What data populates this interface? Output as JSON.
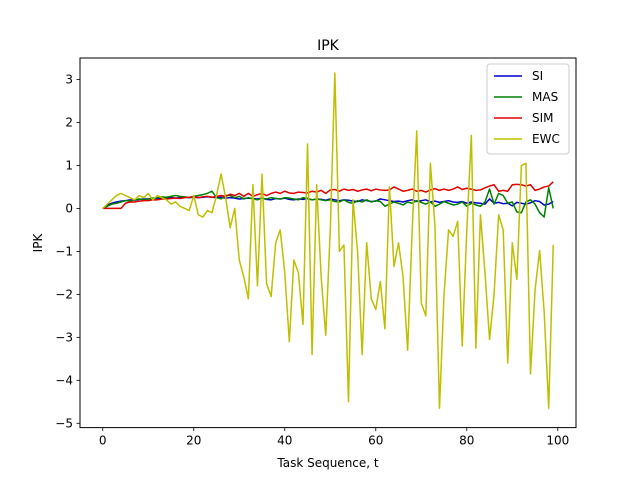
{
  "chart_data": {
    "type": "line",
    "title": "IPK",
    "xlabel": "Task Sequence, t",
    "ylabel": "IPK",
    "xlim": [
      -5,
      104
    ],
    "ylim": [
      -5.1,
      3.5
    ],
    "xticks": [
      0,
      20,
      40,
      60,
      80,
      100
    ],
    "yticks": [
      3,
      2,
      1,
      0,
      -1,
      -2,
      -3,
      -4,
      -5
    ],
    "ytick_labels": [
      "3",
      "2",
      "1",
      "0",
      "−1",
      "−2",
      "−3",
      "−4",
      "−5"
    ],
    "grid": false,
    "legend_position": "top-right",
    "x": [
      0,
      1,
      2,
      3,
      4,
      5,
      6,
      7,
      8,
      9,
      10,
      11,
      12,
      13,
      14,
      15,
      16,
      17,
      18,
      19,
      20,
      21,
      22,
      23,
      24,
      25,
      26,
      27,
      28,
      29,
      30,
      31,
      32,
      33,
      34,
      35,
      36,
      37,
      38,
      39,
      40,
      41,
      42,
      43,
      44,
      45,
      46,
      47,
      48,
      49,
      50,
      51,
      52,
      53,
      54,
      55,
      56,
      57,
      58,
      59,
      60,
      61,
      62,
      63,
      64,
      65,
      66,
      67,
      68,
      69,
      70,
      71,
      72,
      73,
      74,
      75,
      76,
      77,
      78,
      79,
      80,
      81,
      82,
      83,
      84,
      85,
      86,
      87,
      88,
      89,
      90,
      91,
      92,
      93,
      94,
      95,
      96,
      97,
      98,
      99
    ],
    "series": [
      {
        "name": "SI",
        "color": "#0000cc",
        "values": [
          0.0,
          0.08,
          0.12,
          0.15,
          0.17,
          0.18,
          0.2,
          0.19,
          0.21,
          0.22,
          0.22,
          0.23,
          0.23,
          0.24,
          0.24,
          0.25,
          0.24,
          0.25,
          0.26,
          0.25,
          0.26,
          0.25,
          0.26,
          0.27,
          0.26,
          0.25,
          0.26,
          0.24,
          0.25,
          0.24,
          0.22,
          0.23,
          0.24,
          0.23,
          0.22,
          0.24,
          0.21,
          0.2,
          0.23,
          0.22,
          0.24,
          0.21,
          0.2,
          0.22,
          0.21,
          0.23,
          0.2,
          0.22,
          0.21,
          0.19,
          0.22,
          0.2,
          0.18,
          0.2,
          0.19,
          0.17,
          0.16,
          0.2,
          0.18,
          0.16,
          0.17,
          0.22,
          0.2,
          0.18,
          0.16,
          0.17,
          0.15,
          0.18,
          0.2,
          0.16,
          0.18,
          0.2,
          0.15,
          0.17,
          0.14,
          0.16,
          0.18,
          0.15,
          0.14,
          0.16,
          0.12,
          0.15,
          0.13,
          0.12,
          0.1,
          0.22,
          0.12,
          0.14,
          0.11,
          0.12,
          0.06,
          0.14,
          0.12,
          0.1,
          0.13,
          0.18,
          0.16,
          0.08,
          0.1,
          0.16
        ]
      },
      {
        "name": "MAS",
        "color": "#008000",
        "values": [
          0.0,
          0.05,
          0.1,
          0.12,
          0.15,
          0.18,
          0.17,
          0.2,
          0.22,
          0.2,
          0.22,
          0.24,
          0.25,
          0.27,
          0.26,
          0.28,
          0.3,
          0.28,
          0.27,
          0.25,
          0.28,
          0.3,
          0.32,
          0.35,
          0.4,
          0.25,
          0.22,
          0.3,
          0.3,
          0.25,
          0.28,
          0.22,
          0.25,
          0.22,
          0.2,
          0.24,
          0.22,
          0.25,
          0.23,
          0.22,
          0.25,
          0.24,
          0.22,
          0.2,
          0.25,
          0.23,
          0.2,
          0.22,
          0.2,
          0.18,
          0.2,
          0.16,
          0.15,
          0.2,
          0.14,
          0.12,
          0.18,
          0.15,
          0.2,
          0.15,
          0.18,
          0.16,
          0.05,
          0.1,
          0.15,
          0.12,
          0.08,
          0.15,
          0.12,
          0.18,
          0.14,
          0.1,
          0.15,
          0.05,
          0.1,
          0.16,
          0.12,
          0.08,
          0.1,
          0.15,
          0.05,
          0.12,
          0.08,
          0.05,
          0.15,
          0.45,
          0.1,
          0.35,
          0.3,
          0.12,
          0.15,
          -0.08,
          -0.1,
          0.15,
          0.2,
          0.1,
          -0.1,
          -0.2,
          0.48,
          0.0
        ]
      },
      {
        "name": "SIM",
        "color": "#dd0000",
        "values": [
          0.0,
          0.0,
          0.0,
          0.0,
          0.0,
          0.12,
          0.15,
          0.15,
          0.17,
          0.18,
          0.18,
          0.2,
          0.2,
          0.22,
          0.22,
          0.23,
          0.24,
          0.23,
          0.25,
          0.26,
          0.27,
          0.25,
          0.27,
          0.28,
          0.26,
          0.28,
          0.3,
          0.28,
          0.33,
          0.3,
          0.35,
          0.28,
          0.35,
          0.28,
          0.32,
          0.35,
          0.3,
          0.35,
          0.38,
          0.35,
          0.4,
          0.36,
          0.35,
          0.38,
          0.37,
          0.36,
          0.4,
          0.38,
          0.42,
          0.35,
          0.43,
          0.44,
          0.4,
          0.45,
          0.42,
          0.44,
          0.4,
          0.43,
          0.45,
          0.41,
          0.45,
          0.43,
          0.42,
          0.43,
          0.5,
          0.45,
          0.4,
          0.42,
          0.45,
          0.4,
          0.42,
          0.38,
          0.43,
          0.46,
          0.42,
          0.45,
          0.42,
          0.45,
          0.5,
          0.44,
          0.47,
          0.45,
          0.42,
          0.43,
          0.48,
          0.52,
          0.55,
          0.4,
          0.42,
          0.4,
          0.55,
          0.56,
          0.55,
          0.52,
          0.55,
          0.42,
          0.45,
          0.5,
          0.52,
          0.62
        ]
      },
      {
        "name": "EWC",
        "color": "#bfbf00",
        "values": [
          0.0,
          0.1,
          0.2,
          0.3,
          0.35,
          0.3,
          0.25,
          0.2,
          0.3,
          0.25,
          0.35,
          0.2,
          0.3,
          0.25,
          0.2,
          0.1,
          0.15,
          0.05,
          0.0,
          -0.05,
          0.3,
          -0.15,
          -0.2,
          -0.05,
          -0.1,
          0.3,
          0.8,
          0.25,
          -0.45,
          0.0,
          -1.2,
          -1.6,
          -2.1,
          0.55,
          -1.8,
          0.8,
          -1.75,
          -2.05,
          -0.8,
          -0.5,
          -1.5,
          -3.1,
          -1.2,
          -1.5,
          -2.7,
          1.5,
          -3.4,
          0.55,
          -1.6,
          -2.95,
          -0.5,
          3.15,
          -1.0,
          -0.85,
          -4.5,
          0.2,
          -1.0,
          -3.4,
          -0.8,
          -2.1,
          -2.35,
          -1.7,
          -2.8,
          0.5,
          -1.35,
          -0.8,
          -1.6,
          -3.3,
          -0.5,
          1.8,
          -2.2,
          -2.5,
          1.05,
          -0.4,
          -4.65,
          -2.0,
          -0.5,
          -0.65,
          -0.3,
          -3.2,
          -0.5,
          1.7,
          -3.25,
          -0.15,
          -1.5,
          -3.05,
          -2.0,
          -0.15,
          -0.5,
          -3.6,
          -0.8,
          -1.65,
          1.0,
          1.05,
          -3.85,
          -1.9,
          -0.98,
          -2.4,
          -4.65,
          -0.85
        ]
      }
    ]
  }
}
